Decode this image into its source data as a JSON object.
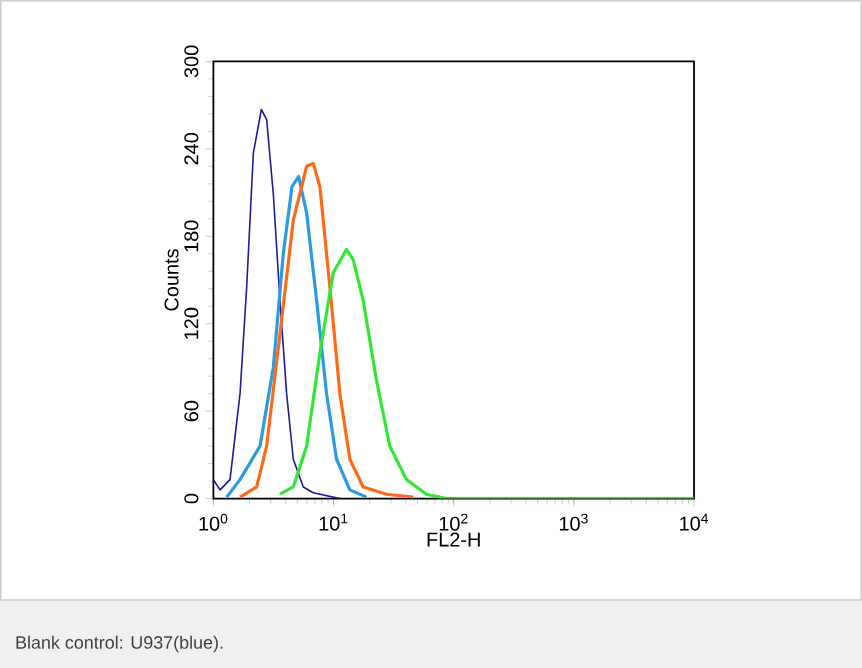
{
  "chart_data": {
    "type": "line",
    "xlabel": "FL2-H",
    "ylabel": "Counts",
    "log": "x",
    "xlim": [
      1,
      10000
    ],
    "ylim": [
      0,
      300
    ],
    "xticks": [
      {
        "value": 1,
        "label": "10$^{0}$"
      },
      {
        "value": 10,
        "label": "10$^{1}$"
      },
      {
        "value": 100,
        "label": "10$^{2}$"
      },
      {
        "value": 1000,
        "label": "10$^{3}$"
      },
      {
        "value": 10000,
        "label": "10$^{4}$"
      }
    ],
    "yticks": [
      0,
      60,
      120,
      180,
      240,
      300
    ],
    "grid": false,
    "annotations": [
      "Blank control: U937(blue)."
    ],
    "series": [
      {
        "color": "#1a1a9a",
        "x": [
          1.0,
          1.136,
          1.375,
          1.666,
          1.892,
          2.15,
          2.506,
          2.775,
          3.153,
          3.581,
          4.068,
          4.622,
          5.597,
          6.776,
          11.29
        ],
        "values": [
          13,
          6,
          13,
          72,
          145,
          237,
          267,
          260,
          209,
          136,
          72,
          27,
          8,
          4,
          0
        ]
      },
      {
        "color": "#2a9be0",
        "x": [
          1.29,
          1.666,
          2.442,
          3.153,
          3.816,
          4.505,
          5.119,
          5.967,
          7.225,
          8.746,
          10.59,
          13.67,
          18.8
        ],
        "values": [
          1,
          13,
          36,
          90,
          168,
          214,
          221,
          196,
          136,
          72,
          27,
          6,
          1
        ]
      },
      {
        "color": "#ff6a1a",
        "x": [
          1.666,
          2.291,
          2.775,
          3.581,
          4.622,
          5.967,
          6.776,
          7.697,
          9.322,
          11.29,
          13.67,
          17.64,
          27.57,
          45.92
        ],
        "values": [
          1,
          8,
          36,
          113,
          191,
          228,
          230,
          214,
          145,
          72,
          27,
          8,
          3,
          1
        ]
      },
      {
        "color": "#33e633",
        "x": [
          3.581,
          4.622,
          5.967,
          7.697,
          9.936,
          12.82,
          14.57,
          17.64,
          22.77,
          29.38,
          40.44,
          59.29,
          86.95,
          10000
        ],
        "values": [
          3,
          8,
          36,
          100,
          155,
          171,
          164,
          136,
          81,
          36,
          13,
          3,
          0,
          0
        ]
      }
    ]
  }
}
